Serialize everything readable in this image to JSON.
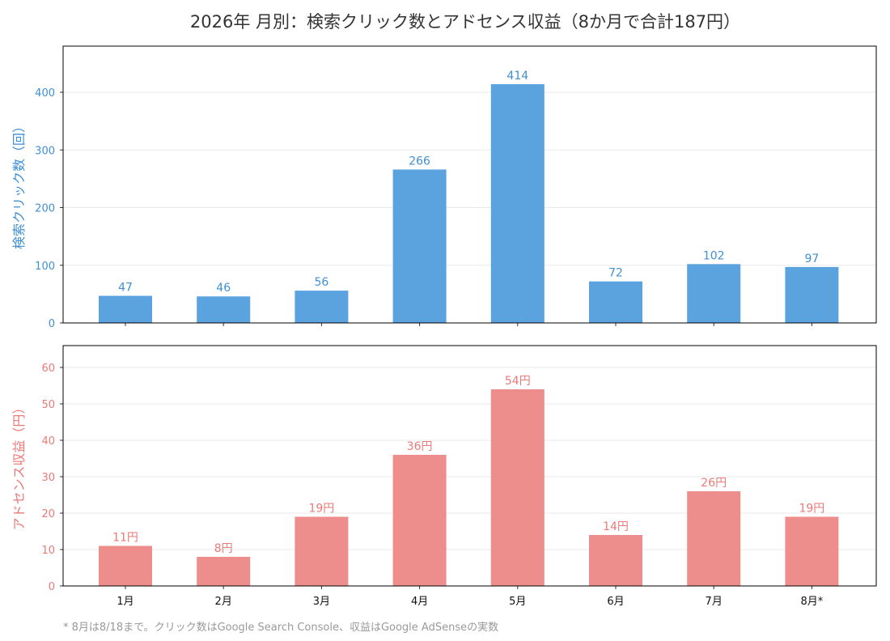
{
  "title": "2026年 月別：検索クリック数とアドセンス収益（8か月で合計187円）",
  "footnote": "* 8月は8/18まで。クリック数はGoogle Search Console、収益はGoogle AdSenseの実数",
  "colors": {
    "clicks": "#5ba3df",
    "clicks_text": "#3f8fd4",
    "revenue": "#ee8e8c",
    "revenue_text": "#ea7a78",
    "frame": "#000000",
    "grid": "#e8e8e8"
  },
  "chart_data": [
    {
      "type": "bar",
      "categories": [
        "1月",
        "2月",
        "3月",
        "4月",
        "5月",
        "6月",
        "7月",
        "8月*"
      ],
      "values": [
        47,
        46,
        56,
        266,
        414,
        72,
        102,
        97
      ],
      "value_labels": [
        "47",
        "46",
        "56",
        "266",
        "414",
        "72",
        "102",
        "97"
      ],
      "ylabel": "検索クリック数（回）",
      "ylim": [
        0,
        480
      ],
      "yticks": [
        0,
        100,
        200,
        300,
        400
      ],
      "grid": true
    },
    {
      "type": "bar",
      "categories": [
        "1月",
        "2月",
        "3月",
        "4月",
        "5月",
        "6月",
        "7月",
        "8月*"
      ],
      "values": [
        11,
        8,
        19,
        36,
        54,
        14,
        26,
        19
      ],
      "value_labels": [
        "11円",
        "8円",
        "19円",
        "36円",
        "54円",
        "14円",
        "26円",
        "19円"
      ],
      "ylabel": "アドセンス収益（円）",
      "ylim": [
        0,
        66
      ],
      "yticks": [
        0,
        10,
        20,
        30,
        40,
        50,
        60
      ],
      "grid": true
    }
  ]
}
